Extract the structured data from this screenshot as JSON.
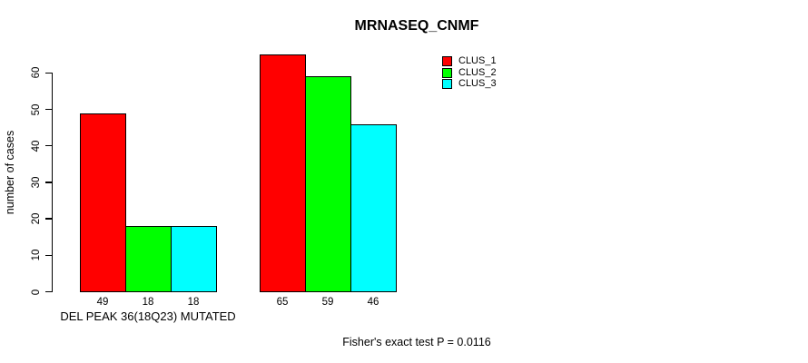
{
  "title": "MRNASEQ_CNMF",
  "chart_data": {
    "type": "bar",
    "title": "MRNASEQ_CNMF",
    "xlabel": "",
    "ylabel": "number of cases",
    "ylim": [
      0,
      65
    ],
    "yticks": [
      0,
      10,
      20,
      30,
      40,
      50,
      60
    ],
    "grid": false,
    "legend_position": "top-right",
    "series_names": [
      "CLUS_1",
      "CLUS_2",
      "CLUS_3"
    ],
    "series_colors": [
      "#ff0000",
      "#00ff00",
      "#00ffff"
    ],
    "groups": [
      {
        "label": "DEL PEAK 36(18Q23) MUTATED",
        "values": [
          49,
          18,
          18
        ]
      },
      {
        "label": "",
        "values": [
          65,
          59,
          46
        ]
      }
    ],
    "bar_value_labels": [
      [
        "49",
        "18",
        "18"
      ],
      [
        "65",
        "59",
        "46"
      ]
    ],
    "annotation": "Fisher's exact test P = 0.0116"
  },
  "legend": {
    "entries": [
      {
        "label": "CLUS_1",
        "color": "#ff0000"
      },
      {
        "label": "CLUS_2",
        "color": "#00ff00"
      },
      {
        "label": "CLUS_3",
        "color": "#00ffff"
      }
    ]
  }
}
